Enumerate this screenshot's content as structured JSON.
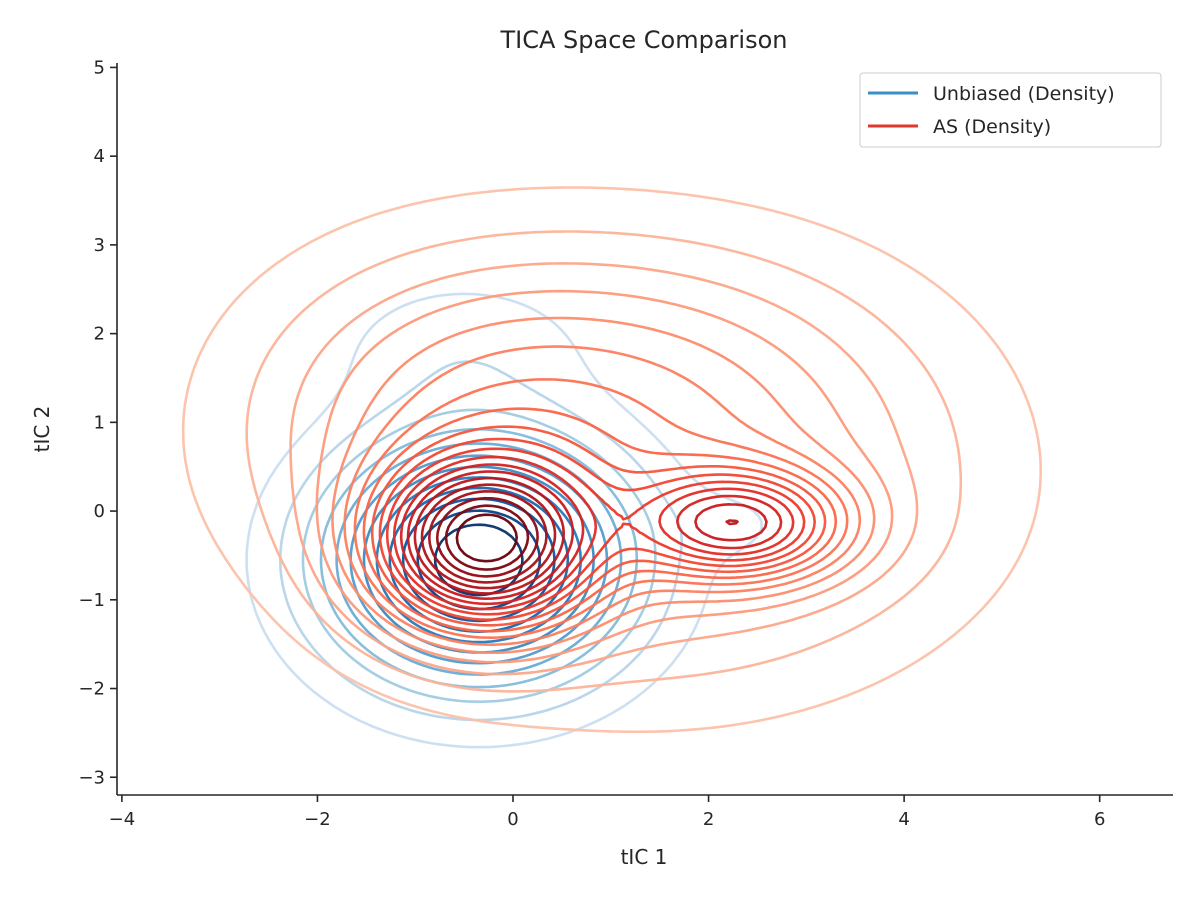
{
  "chart_data": {
    "type": "contour",
    "title": "TICA Space Comparison",
    "xlabel": "tIC 1",
    "ylabel": "tIC 2",
    "xlim": [
      -4.05,
      6.75
    ],
    "ylim": [
      -3.2,
      5.05
    ],
    "xticks": [
      -4,
      -2,
      0,
      2,
      4,
      6
    ],
    "yticks": [
      -3,
      -2,
      -1,
      0,
      1,
      2,
      3,
      4,
      5
    ],
    "grid": false,
    "legend_position": "top-right",
    "series": [
      {
        "name": "Unbiased (Density)",
        "color": "#3a8fc7",
        "colormap": "Blues",
        "levels": 12,
        "components": [
          {
            "cx": -0.35,
            "cy": -0.55,
            "sx": 0.9,
            "sy": 0.8,
            "weight": 1.0
          },
          {
            "cx": -0.5,
            "cy": 1.8,
            "sx": 0.85,
            "sy": 0.55,
            "weight": 0.06
          },
          {
            "cx": 2.3,
            "cy": -0.15,
            "sx": 0.45,
            "sy": 0.3,
            "weight": 0.03
          }
        ]
      },
      {
        "name": "AS (Density)",
        "color": "#e0382c",
        "colormap": "Reds",
        "levels": 20,
        "components": [
          {
            "cx": -0.3,
            "cy": -0.35,
            "sx": 0.7,
            "sy": 0.6,
            "weight": 1.0
          },
          {
            "cx": 2.3,
            "cy": -0.15,
            "sx": 0.7,
            "sy": 0.4,
            "weight": 0.55
          },
          {
            "cx": 1.4,
            "cy": 0.4,
            "sx": 1.8,
            "sy": 1.3,
            "weight": 0.22
          },
          {
            "cx": -0.6,
            "cy": 1.0,
            "sx": 1.3,
            "sy": 1.1,
            "weight": 0.12
          },
          {
            "cx": 1.0,
            "cy": 1.8,
            "sx": 1.6,
            "sy": 0.9,
            "weight": 0.05
          }
        ]
      }
    ]
  }
}
